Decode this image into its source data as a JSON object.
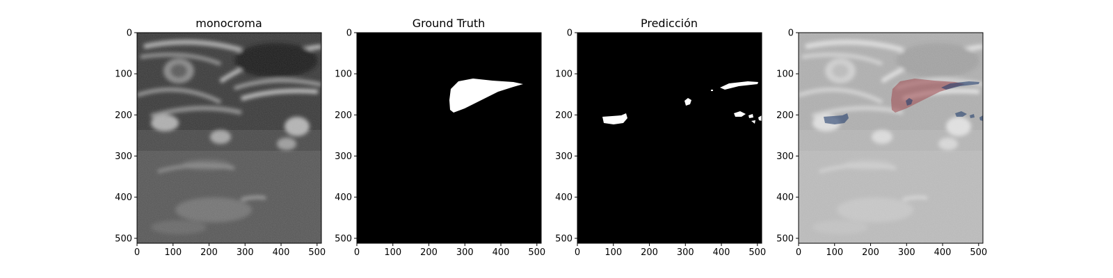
{
  "panels": [
    {
      "id": "monochrome",
      "title": "monocroma"
    },
    {
      "id": "ground-truth",
      "title": "Ground Truth"
    },
    {
      "id": "prediction",
      "title": "Predicción"
    },
    {
      "id": "overlay",
      "title": ""
    }
  ],
  "axis_ticks": {
    "x": [
      "0",
      "100",
      "200",
      "300",
      "400",
      "500"
    ],
    "y": [
      "0",
      "100",
      "200",
      "300",
      "400",
      "500"
    ]
  },
  "colors": {
    "mask_foreground": "#ffffff",
    "mask_background": "#000000",
    "overlay_ground_truth": "#a0494e",
    "overlay_prediction": "#24406e"
  }
}
